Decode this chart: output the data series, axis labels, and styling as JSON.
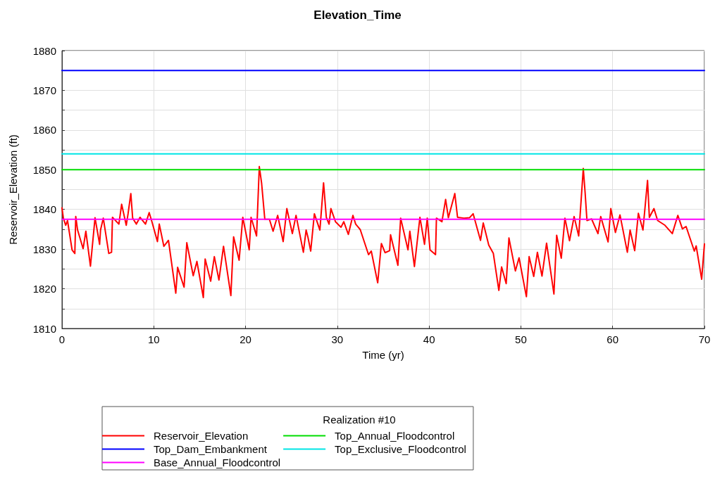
{
  "chart_data": {
    "type": "line",
    "title": "Elevation_Time",
    "xlabel": "Time (yr)",
    "ylabel": "Reservoir_Elevation (ft)",
    "legend_title": "Realization #10",
    "legend": "bottom",
    "grid": true,
    "marker": "none",
    "line_style": "solid",
    "xlim": [
      0,
      70
    ],
    "xticks": [
      0,
      10,
      20,
      30,
      40,
      50,
      60,
      70
    ],
    "ylim": [
      1810,
      1880
    ],
    "yticks": [
      1810,
      {
        "value": 1815,
        "label": null
      },
      1820,
      {
        "value": 1825,
        "label": null
      },
      1830,
      {
        "value": 1835,
        "label": null
      },
      1840,
      {
        "value": 1845,
        "label": null
      },
      1850,
      {
        "value": 1855,
        "label": null
      },
      1860,
      {
        "value": 1865,
        "label": null
      },
      1870,
      {
        "value": 1875,
        "label": null
      },
      1880
    ],
    "series": [
      {
        "name": "Reservoir_Elevation",
        "color": "#ff0000",
        "x": [
          0,
          0.15,
          0.4,
          0.6,
          1.1,
          1.4,
          1.5,
          1.7,
          2.3,
          2.6,
          3.1,
          3.6,
          4.1,
          4.2,
          4.5,
          5.1,
          5.4,
          5.5,
          6.2,
          6.5,
          7.0,
          7.2,
          7.5,
          7.7,
          8.1,
          8.5,
          9.1,
          9.5,
          9.8,
          10.4,
          10.6,
          11.1,
          11.6,
          12.4,
          12.6,
          13.3,
          13.6,
          14.3,
          14.7,
          15.4,
          15.6,
          16.2,
          16.6,
          17.1,
          17.6,
          18.4,
          18.7,
          19.3,
          19.7,
          20.4,
          20.6,
          21.2,
          21.5,
          21.75,
          22.1,
          22.6,
          23.0,
          23.5,
          24.1,
          24.5,
          25.1,
          25.5,
          26.3,
          26.6,
          26.8,
          27.1,
          27.5,
          28.1,
          28.5,
          28.8,
          29.1,
          29.3,
          29.8,
          30.4,
          30.7,
          31.2,
          31.7,
          32.0,
          32.5,
          33.4,
          33.7,
          34.4,
          34.8,
          35.2,
          35.7,
          35.8,
          36.6,
          36.9,
          37.7,
          37.9,
          38.4,
          39.0,
          39.5,
          39.8,
          40.1,
          40.7,
          40.8,
          41.4,
          41.8,
          42.1,
          42.8,
          43.1,
          43.8,
          44.4,
          44.8,
          45.6,
          45.9,
          46.5,
          47.0,
          47.6,
          47.9,
          48.4,
          48.7,
          49.4,
          49.8,
          50.6,
          50.9,
          51.4,
          51.8,
          52.3,
          52.8,
          53.6,
          53.9,
          54.4,
          54.8,
          55.3,
          55.8,
          56.3,
          56.8,
          57.0,
          57.2,
          57.7,
          58.4,
          58.7,
          59.5,
          59.8,
          60.3,
          60.8,
          61.6,
          61.9,
          62.4,
          62.8,
          63.3,
          63.8,
          64.0,
          64.5,
          64.9,
          65.7,
          66.5,
          67.1,
          67.6,
          68.0,
          68.9,
          69.1,
          69.7,
          70
        ],
        "values": [
          1840.4,
          1837.8,
          1836,
          1837.2,
          1829.8,
          1828.9,
          1838.2,
          1834.8,
          1830.1,
          1834.5,
          1825.7,
          1837.9,
          1831.2,
          1834.8,
          1837.8,
          1828.9,
          1829.2,
          1838,
          1836.3,
          1841.3,
          1836,
          1838.9,
          1844,
          1837.8,
          1836.3,
          1838,
          1836.3,
          1839.2,
          1836.9,
          1831.9,
          1836.3,
          1830.7,
          1832.2,
          1818.9,
          1825.4,
          1820.4,
          1831.6,
          1823.3,
          1826.9,
          1817.8,
          1827.5,
          1821.9,
          1828.1,
          1822.2,
          1830.7,
          1818.3,
          1833.1,
          1827.2,
          1838,
          1829.8,
          1838,
          1833.3,
          1850.8,
          1846.6,
          1837.5,
          1837.5,
          1834.5,
          1838.5,
          1831.9,
          1840.2,
          1833.9,
          1838.5,
          1829.2,
          1834.8,
          1833,
          1829.5,
          1838.9,
          1834.8,
          1846.7,
          1838,
          1836.3,
          1840.2,
          1836.9,
          1835.5,
          1836.9,
          1833.7,
          1838.5,
          1836.3,
          1834.9,
          1828.6,
          1829.5,
          1821.5,
          1831.4,
          1829.1,
          1829.6,
          1833.6,
          1825.9,
          1837.8,
          1829.8,
          1834.5,
          1825.6,
          1838,
          1831.2,
          1837.8,
          1829.8,
          1828.6,
          1837.8,
          1836.9,
          1842.5,
          1837.9,
          1844,
          1838,
          1837.8,
          1837.9,
          1838.9,
          1832.2,
          1836.6,
          1831,
          1828.9,
          1819.6,
          1825.5,
          1821.3,
          1832.8,
          1824.5,
          1827.8,
          1818,
          1828.1,
          1823.1,
          1829.2,
          1823.2,
          1831.5,
          1818.7,
          1833.5,
          1827.7,
          1837.8,
          1832.1,
          1838.2,
          1833.3,
          1850.3,
          1844.2,
          1837.2,
          1837.6,
          1833.9,
          1838.2,
          1831.8,
          1840.2,
          1834.2,
          1838.6,
          1829.2,
          1834.8,
          1829.6,
          1839,
          1834.8,
          1847.3,
          1838,
          1840.2,
          1837.2,
          1836,
          1833.9,
          1838.5,
          1835.1,
          1835.7,
          1829.5,
          1830.8,
          1822.4,
          1831.3
        ]
      },
      {
        "name": "Top_Dam_Embankment",
        "color": "#0000ff",
        "x": [
          0,
          70
        ],
        "values": [
          1875,
          1875
        ]
      },
      {
        "name": "Base_Annual_Floodcontrol",
        "color": "#ff00ff",
        "x": [
          0,
          70
        ],
        "values": [
          1837.5,
          1837.5
        ]
      },
      {
        "name": "Top_Annual_Floodcontrol",
        "color": "#00dd00",
        "x": [
          0,
          70
        ],
        "values": [
          1850,
          1850
        ]
      },
      {
        "name": "Top_Exclusive_Floodcontrol",
        "color": "#00e5e5",
        "x": [
          0,
          70
        ],
        "values": [
          1854,
          1854
        ]
      }
    ]
  }
}
